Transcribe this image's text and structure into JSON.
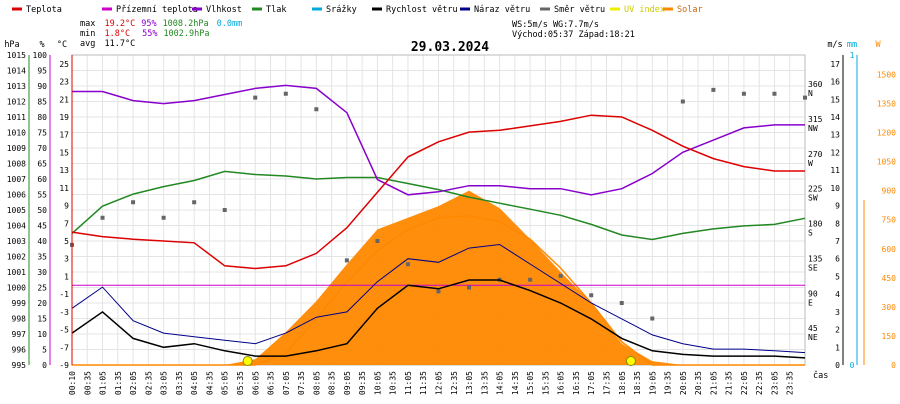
{
  "chart_data": {
    "type": "line",
    "title": "29.03.2024",
    "legend": [
      {
        "label": "Teplota",
        "color": "#dd0000"
      },
      {
        "label": "Přízemní teplota",
        "color": "#cc00cc"
      },
      {
        "label": "Vlhkost",
        "color": "#8800cc"
      },
      {
        "label": "Tlak",
        "color": "#228822"
      },
      {
        "label": "Srážky",
        "color": "#00aadd"
      },
      {
        "label": "Rychlost větru",
        "color": "#000000"
      },
      {
        "label": "Náraz větru",
        "color": "#000088"
      },
      {
        "label": "Směr větru",
        "color": "#666666"
      },
      {
        "label": "UV index",
        "color": "#eeee00"
      },
      {
        "label": "Solar",
        "color": "#ff8800"
      }
    ],
    "stats": {
      "max": {
        "label": "max",
        "temp": "19.2°C",
        "humidity": "95%",
        "pressure": "1008.2hPa",
        "rain": "0.0mm"
      },
      "min": {
        "label": "min",
        "temp": "1.8°C",
        "humidity": "55%",
        "pressure": "1002.9hPa"
      },
      "avg": {
        "label": "avg",
        "temp": "11.7°C"
      }
    },
    "wind_info": {
      "ws": "WS:5m/s",
      "wg": "WG:7.7m/s",
      "sunrise": "Východ:05:37",
      "sunset": "Západ:18:21"
    },
    "axes": {
      "pressure": {
        "unit": "hPa",
        "color": "#228822",
        "ticks": [
          "1015",
          "1014",
          "1013",
          "1012",
          "1011",
          "1010",
          "1009",
          "1008",
          "1007",
          "1006",
          "1005",
          "1004",
          "1003",
          "1002",
          "1001",
          "1000",
          "999",
          "998",
          "997",
          "996",
          "995"
        ]
      },
      "humidity": {
        "unit": "%",
        "color": "#cc00cc",
        "ticks": [
          "100",
          "95",
          "90",
          "85",
          "80",
          "75",
          "70",
          "65",
          "60",
          "55",
          "50",
          "45",
          "40",
          "35",
          "30",
          "25",
          "20",
          "15",
          "10",
          "5",
          "0"
        ]
      },
      "temperature": {
        "unit": "°C",
        "color": "#dd0000",
        "ticks": [
          "25",
          "23",
          "21",
          "19",
          "17",
          "15",
          "13",
          "11",
          "9",
          "7",
          "5",
          "3",
          "1",
          "-1",
          "-3",
          "-5",
          "-7",
          "-9"
        ]
      },
      "wind_direction": {
        "ticks": [
          {
            "value": "360",
            "label": "N"
          },
          {
            "value": "315",
            "label": "NW"
          },
          {
            "value": "270",
            "label": "W"
          },
          {
            "value": "225",
            "label": "SW"
          },
          {
            "value": "180",
            "label": "S"
          },
          {
            "value": "135",
            "label": "SE"
          },
          {
            "value": "90",
            "label": "E"
          },
          {
            "value": "45",
            "label": "NE"
          }
        ]
      },
      "wind_speed": {
        "unit": "m/s",
        "ticks": [
          "17",
          "16",
          "15",
          "14",
          "13",
          "12",
          "11",
          "10",
          "9",
          "8",
          "7",
          "6",
          "5",
          "4",
          "3",
          "2",
          "1",
          "0"
        ]
      },
      "rain": {
        "unit": "mm",
        "color": "#00aadd",
        "ticks": [
          "1",
          "0"
        ]
      },
      "solar": {
        "unit": "W",
        "color": "#ff8800",
        "ticks": [
          "1500",
          "1350",
          "1200",
          "1050",
          "900",
          "750",
          "600",
          "450",
          "300",
          "150",
          "0"
        ]
      },
      "x": {
        "label": "čas",
        "ticks": [
          "00:10",
          "00:35",
          "01:05",
          "01:35",
          "02:05",
          "02:35",
          "03:05",
          "03:35",
          "04:05",
          "04:35",
          "05:05",
          "05:35",
          "06:05",
          "06:35",
          "07:05",
          "07:35",
          "08:05",
          "08:35",
          "09:05",
          "09:35",
          "10:05",
          "10:35",
          "11:05",
          "11:35",
          "12:05",
          "12:35",
          "13:05",
          "13:35",
          "14:05",
          "14:35",
          "15:05",
          "15:35",
          "16:05",
          "16:35",
          "17:05",
          "17:35",
          "18:05",
          "18:35",
          "19:05",
          "19:35",
          "20:05",
          "20:35",
          "21:05",
          "21:35",
          "22:05",
          "22:35",
          "23:05",
          "23:35"
        ]
      }
    },
    "hours": [
      0,
      1,
      2,
      3,
      4,
      5,
      6,
      7,
      8,
      9,
      10,
      11,
      12,
      13,
      14,
      15,
      16,
      17,
      18,
      19,
      20,
      21,
      22,
      23,
      24
    ],
    "temperature": [
      6.0,
      5.5,
      5.2,
      5.0,
      4.8,
      2.2,
      1.9,
      2.2,
      3.6,
      6.5,
      10.5,
      14.5,
      16.2,
      17.3,
      17.5,
      18.0,
      18.5,
      19.2,
      19.0,
      17.5,
      15.7,
      14.3,
      13.4,
      12.9,
      12.9
    ],
    "humidity": [
      90,
      90,
      87,
      86,
      87,
      89,
      91,
      92,
      91,
      83,
      61,
      56,
      57,
      59,
      59,
      58,
      58,
      56,
      58,
      63,
      70,
      74,
      78,
      79,
      79
    ],
    "pressure": [
      1003.7,
      1005.5,
      1006.3,
      1006.8,
      1007.2,
      1007.8,
      1007.6,
      1007.5,
      1007.3,
      1007.4,
      1007.4,
      1007.0,
      1006.6,
      1006.1,
      1005.7,
      1005.3,
      1004.9,
      1004.3,
      1003.6,
      1003.3,
      1003.7,
      1004.0,
      1004.2,
      1004.3,
      1004.7
    ],
    "wind_speed": [
      1.8,
      3.0,
      1.5,
      1.0,
      1.2,
      0.8,
      0.5,
      0.5,
      0.8,
      1.2,
      3.2,
      4.5,
      4.3,
      4.8,
      4.8,
      4.2,
      3.5,
      2.6,
      1.5,
      0.8,
      0.6,
      0.5,
      0.5,
      0.5,
      0.4
    ],
    "wind_gust": [
      3.2,
      4.4,
      2.5,
      1.8,
      1.6,
      1.4,
      1.2,
      1.8,
      2.7,
      3.0,
      4.7,
      6.0,
      5.8,
      6.6,
      6.8,
      5.7,
      4.6,
      3.5,
      2.6,
      1.7,
      1.2,
      0.9,
      0.9,
      0.8,
      0.7
    ],
    "wind_direction": [
      155,
      190,
      210,
      190,
      210,
      200,
      345,
      350,
      330,
      135,
      160,
      130,
      95,
      100,
      110,
      110,
      115,
      90,
      80,
      60,
      340,
      355,
      350,
      350,
      345
    ],
    "solar": [
      0,
      0,
      0,
      0,
      0,
      0,
      30,
      170,
      330,
      520,
      700,
      760,
      820,
      900,
      810,
      650,
      480,
      320,
      110,
      20,
      0,
      0,
      0,
      0,
      0
    ],
    "solar_theoretical": [
      0,
      0,
      0,
      0,
      0,
      0,
      0,
      60,
      240,
      430,
      590,
      700,
      760,
      770,
      740,
      650,
      500,
      320,
      120,
      0,
      0,
      0,
      0,
      0,
      0
    ],
    "uv_index_markers": [
      {
        "hour": 5.75,
        "value": 0
      },
      {
        "hour": 18.3,
        "value": 0
      }
    ],
    "reference_lines": {
      "temperature_zero": 0
    }
  }
}
